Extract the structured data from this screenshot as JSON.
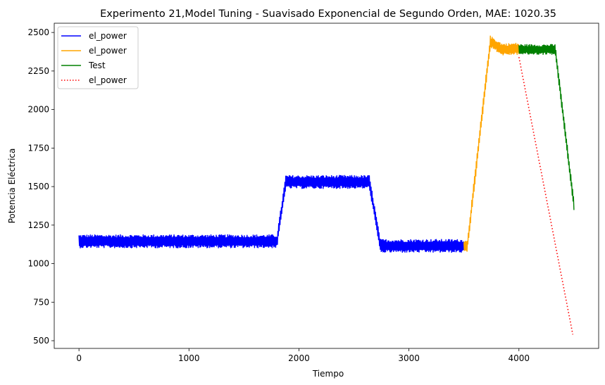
{
  "chart_data": {
    "type": "line",
    "title": "Experimento 21,Model Tuning - Suavisado Exponencial de Segundo Orden, MAE: 1020.35",
    "xlabel": "Tiempo",
    "ylabel": "Potencia Eléctrica",
    "xlim": [
      -225,
      4725
    ],
    "ylim": [
      450,
      2560
    ],
    "xticks": [
      0,
      1000,
      2000,
      3000,
      4000
    ],
    "yticks": [
      500,
      750,
      1000,
      1250,
      1500,
      1750,
      2000,
      2250,
      2500
    ],
    "legend_position": "top-left",
    "grid": false,
    "series": [
      {
        "name": "el_power",
        "color": "#0000ff",
        "style": "solid",
        "noise_amplitude": 45,
        "x": [
          0,
          1800,
          1880,
          2640,
          2740,
          3500
        ],
        "y": [
          1145,
          1145,
          1530,
          1530,
          1115,
          1115
        ]
      },
      {
        "name": "el_power",
        "color": "#ffa500",
        "style": "solid",
        "noise_amplitude": 40,
        "x": [
          3500,
          3530,
          3740,
          3850,
          4000
        ],
        "y": [
          1115,
          1110,
          2440,
          2390,
          2395
        ]
      },
      {
        "name": "Test",
        "color": "#008000",
        "style": "solid",
        "noise_amplitude": 35,
        "x": [
          4000,
          4330,
          4500
        ],
        "y": [
          2390,
          2390,
          1380
        ]
      },
      {
        "name": "el_power",
        "color": "#ff0000",
        "style": "dotted",
        "noise_amplitude": 0,
        "x": [
          4000,
          4490
        ],
        "y": [
          2340,
          540
        ]
      }
    ]
  }
}
